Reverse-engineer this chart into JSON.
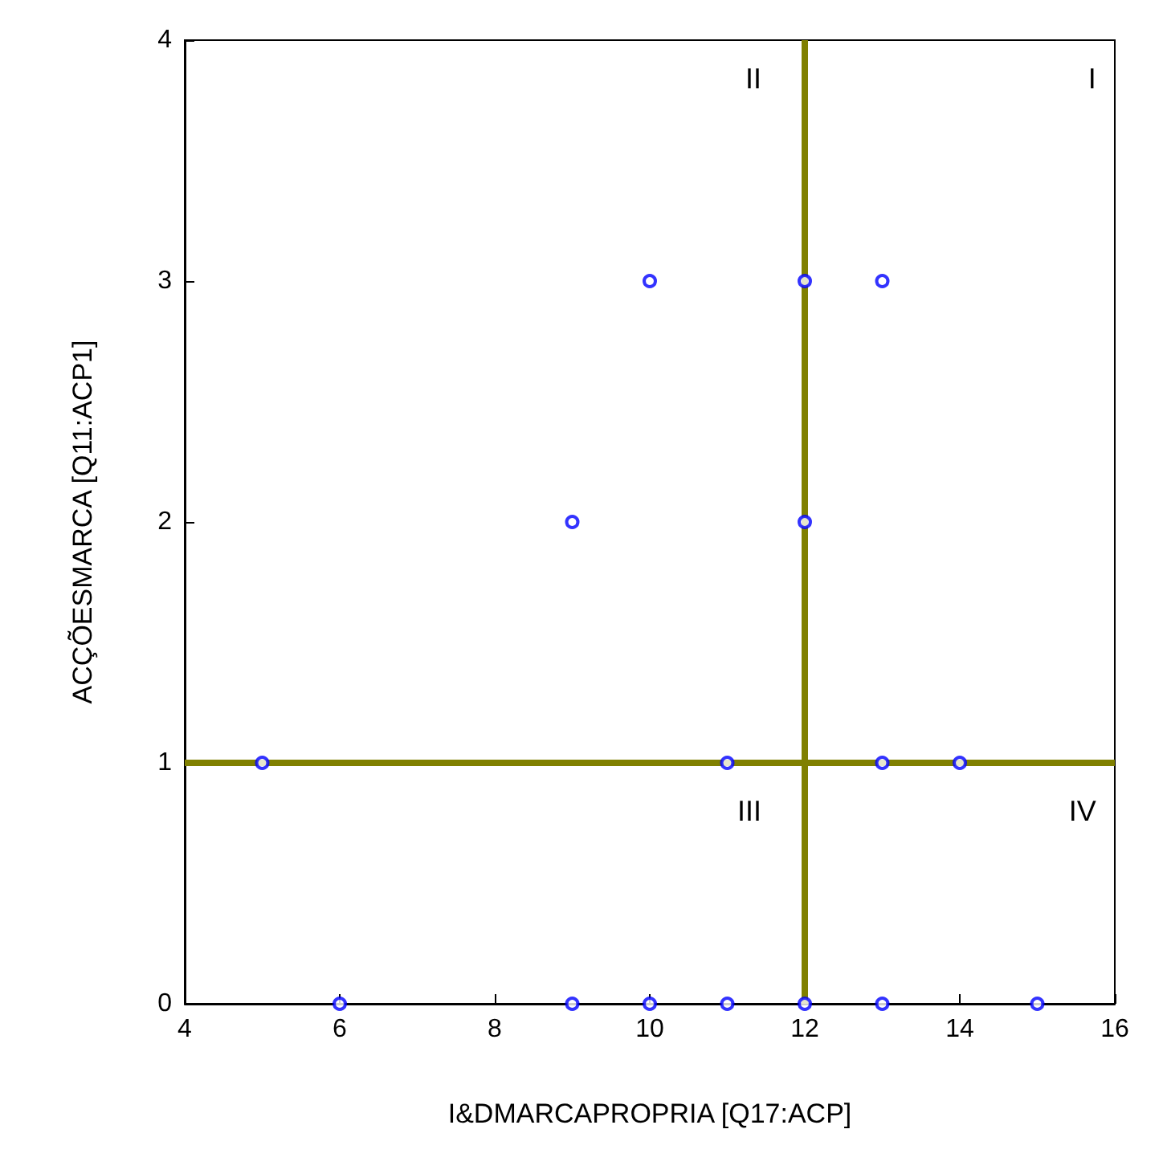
{
  "chart_data": {
    "type": "scatter",
    "xlabel": "I&DMARCAPROPRIA [Q17:ACP]",
    "ylabel": "ACÇÕESMARCA [Q11:ACP1]",
    "x": [
      5,
      6,
      9,
      9,
      10,
      10,
      11,
      11,
      12,
      12,
      12,
      13,
      13,
      13,
      14,
      15
    ],
    "values": [
      1,
      0,
      0,
      2,
      3,
      0,
      1,
      0,
      3,
      2,
      0,
      3,
      1,
      0,
      1,
      0
    ],
    "color": "#0000ff",
    "marker": "circle",
    "xlim": [
      4,
      16
    ],
    "xticks": [
      4,
      6,
      8,
      10,
      12,
      14,
      16
    ],
    "ylim": [
      0,
      4
    ],
    "yticks": [
      0,
      1,
      2,
      3,
      4
    ],
    "ref_lines": [
      {
        "axis": "x",
        "value": 12,
        "color": "#808000"
      },
      {
        "axis": "y",
        "value": 1,
        "color": "#808000"
      }
    ],
    "annotations": [
      "I",
      "II",
      "III",
      "IV"
    ]
  }
}
